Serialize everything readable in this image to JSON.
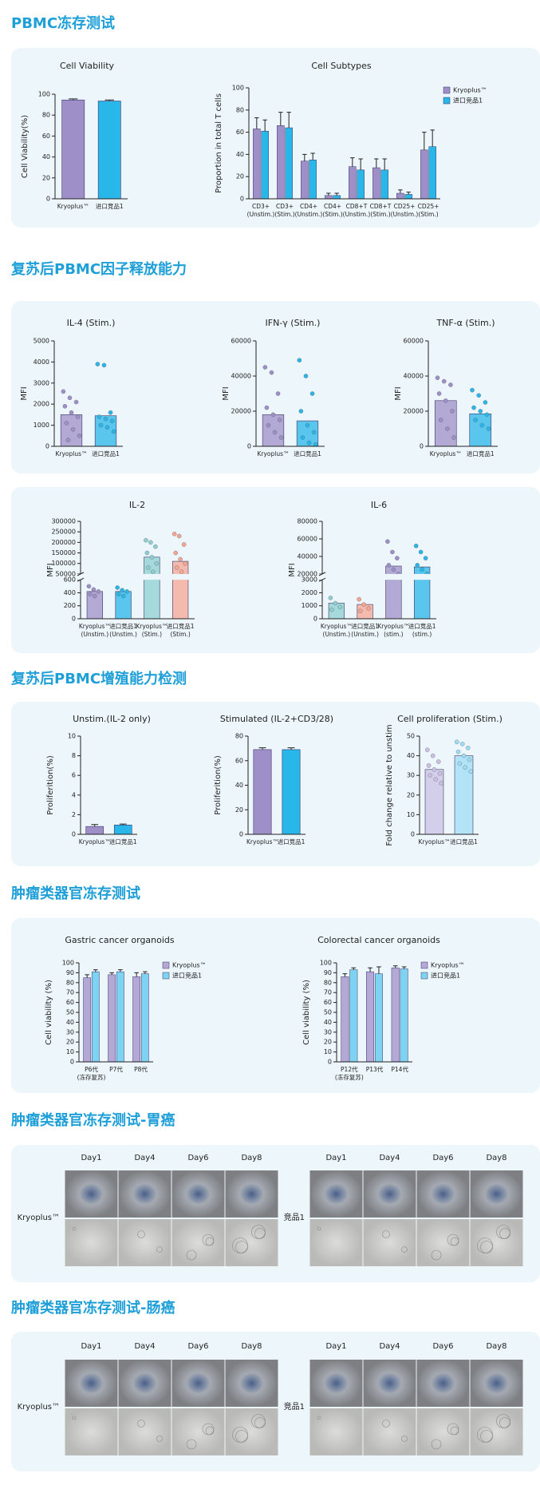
{
  "sections": [
    {
      "title": "PBMC冻存测试",
      "charts": [
        {
          "type": "bar",
          "title": "Cell Viability",
          "ylabel": "Cell Viability(%)",
          "categories": [
            [
              "Kryoplus™"
            ],
            [
              "进口竞品1"
            ]
          ],
          "values": [
            94.5,
            93.5
          ],
          "errors": [
            1,
            1
          ],
          "colors": [
            "#9e8fc8",
            "#29b6e8"
          ],
          "ylim": [
            0,
            100
          ],
          "yticks": [
            0,
            20,
            40,
            60,
            80,
            100
          ]
        },
        {
          "type": "grouped-bar",
          "title": "Cell Subtypes",
          "ylabel": "Proportion in total T cells",
          "categories": [
            [
              "CD3+",
              "(Unstim.)"
            ],
            [
              "CD3+",
              "(Stim.)"
            ],
            [
              "CD4+",
              "(Unstim.)"
            ],
            [
              "CD4+",
              "(Stim.)"
            ],
            [
              "CD8+T",
              "(Unstim.)"
            ],
            [
              "CD8+T",
              "(Stim.)"
            ],
            [
              "CD25+",
              "(Unstim.)"
            ],
            [
              "CD25+",
              "(Stim.)"
            ]
          ],
          "series": [
            {
              "name": "Kryoplus™",
              "color": "#9e8fc8",
              "values": [
                63,
                66,
                34,
                3,
                29,
                28,
                5,
                44
              ],
              "errors": [
                10,
                12,
                6,
                2,
                8,
                8,
                3,
                16
              ]
            },
            {
              "name": "进口竞品1",
              "color": "#29b6e8",
              "values": [
                61,
                64,
                35,
                3,
                26,
                26,
                4,
                47
              ],
              "errors": [
                10,
                14,
                6,
                2,
                10,
                10,
                2,
                15
              ]
            }
          ],
          "ylim": [
            0,
            100
          ],
          "yticks": [
            0,
            20,
            40,
            60,
            80,
            100
          ],
          "legend": "top-right"
        }
      ]
    },
    {
      "title": "复苏后PBMC因子释放能力",
      "charts": [
        {
          "type": "bar",
          "title": "IL-4 (Stim.)",
          "ylabel": "MFI",
          "categories": [
            [
              "Kryoplus™"
            ],
            [
              "进口竞品1"
            ]
          ],
          "values": [
            1500,
            1450
          ],
          "colors": [
            "#9e8fc8",
            "#29b6e8"
          ],
          "points": [
            [
              2600,
              2300,
              2100,
              1900,
              1600,
              1400,
              1100,
              800,
              500,
              300
            ],
            [
              3900,
              3850,
              1600,
              1400,
              1300,
              1200,
              1000,
              900,
              700
            ]
          ],
          "ylim": [
            0,
            5000
          ],
          "yticks": [
            0,
            1000,
            2000,
            3000,
            4000,
            5000
          ]
        },
        {
          "type": "bar",
          "title": "IFN-γ (Stim.)",
          "ylabel": "MFI",
          "categories": [
            [
              "Kryoplus™"
            ],
            [
              "进口竞品1"
            ]
          ],
          "values": [
            18000,
            14500
          ],
          "colors": [
            "#9e8fc8",
            "#29b6e8"
          ],
          "points": [
            [
              45000,
              42000,
              30000,
              22000,
              18000,
              15000,
              12000,
              8000,
              5000
            ],
            [
              49000,
              40000,
              30000,
              20000,
              12000,
              8000,
              5000,
              2000,
              1000
            ]
          ],
          "ylim": [
            0,
            60000
          ],
          "yticks": [
            0,
            20000,
            40000,
            60000
          ]
        },
        {
          "type": "bar",
          "title": "TNF-α (Stim.)",
          "ylabel": "MFI",
          "categories": [
            [
              "Kryoplus™"
            ],
            [
              "进口竞品1"
            ]
          ],
          "values": [
            26000,
            18500
          ],
          "colors": [
            "#9e8fc8",
            "#29b6e8"
          ],
          "points": [
            [
              39000,
              37000,
              35000,
              30000,
              26000,
              20000,
              15000,
              10000,
              5000
            ],
            [
              32000,
              29000,
              25000,
              22000,
              20000,
              18000,
              15000,
              12000,
              10000
            ]
          ],
          "ylim": [
            0,
            60000
          ],
          "yticks": [
            0,
            20000,
            40000,
            60000
          ]
        },
        {
          "type": "bar",
          "title": "IL-2",
          "ylabel": "MFI",
          "categories": [
            [
              "Kryoplus™",
              "(Unstim.)"
            ],
            [
              "进口竞品1",
              "(Unstim.)"
            ],
            [
              "Kryoplus™",
              "(Stim.)"
            ],
            [
              "进口竞品1",
              "(Stim.)"
            ]
          ],
          "values": [
            420,
            420,
            130000,
            110000
          ],
          "colors": [
            "#9e8fc8",
            "#29b6e8",
            "#8ccfd0",
            "#f4a593"
          ],
          "points": [
            [
              500,
              450,
              420,
              380,
              350
            ],
            [
              480,
              440,
              420,
              380,
              350
            ],
            [
              210000,
              200000,
              180000,
              150000,
              130000,
              100000,
              80000,
              60000
            ],
            [
              240000,
              230000,
              190000,
              150000,
              120000,
              100000,
              80000,
              60000
            ]
          ],
          "ylim": [
            0,
            300000
          ],
          "axis_break": [
            600,
            50000
          ],
          "yticks": [
            0,
            200,
            400,
            600,
            50000,
            100000,
            150000,
            200000,
            250000,
            300000
          ]
        },
        {
          "type": "bar",
          "title": "IL-6",
          "ylabel": "MFI",
          "categories": [
            [
              "Kryoplus™",
              "(Unstim.)"
            ],
            [
              "进口竞品1",
              "(Unstim.)"
            ],
            [
              "Kryoplus™",
              "(stim.)"
            ],
            [
              "进口竞品1",
              "(stim.)"
            ]
          ],
          "values": [
            1200,
            1100,
            29000,
            28000
          ],
          "colors": [
            "#8ccfd0",
            "#f4a593",
            "#9e8fc8",
            "#29b6e8"
          ],
          "points": [
            [
              1600,
              1200,
              900,
              700
            ],
            [
              1500,
              1100,
              800,
              600
            ],
            [
              57000,
              45000,
              38000,
              30000,
              25000,
              20000
            ],
            [
              52000,
              45000,
              38000,
              30000,
              25000,
              20000
            ]
          ],
          "ylim": [
            0,
            80000
          ],
          "axis_break": [
            3000,
            20000
          ],
          "yticks": [
            0,
            1000,
            2000,
            3000,
            20000,
            40000,
            60000,
            80000
          ]
        }
      ]
    },
    {
      "title": "复苏后PBMC增殖能力检测",
      "charts": [
        {
          "type": "bar",
          "title": "Unstim.(IL-2 only)",
          "ylabel": "Proliferition(%)",
          "categories": [
            [
              "Kryoplus™"
            ],
            [
              "进口竞品1"
            ]
          ],
          "values": [
            0.8,
            0.95
          ],
          "errors": [
            0.2,
            0.1
          ],
          "colors": [
            "#9e8fc8",
            "#29b6e8"
          ],
          "ylim": [
            0,
            10
          ],
          "yticks": [
            0,
            2,
            4,
            6,
            8,
            10
          ]
        },
        {
          "type": "bar",
          "title": "Stimulated (IL-2+CD3/28)",
          "ylabel": "Proliferition(%)",
          "categories": [
            [
              "Kryoplus™"
            ],
            [
              "进口竞品1"
            ]
          ],
          "values": [
            69,
            69
          ],
          "errors": [
            1.5,
            1.5
          ],
          "colors": [
            "#9e8fc8",
            "#29b6e8"
          ],
          "ylim": [
            0,
            80
          ],
          "yticks": [
            0,
            20,
            40,
            60,
            80
          ]
        },
        {
          "type": "bar",
          "title": "Cell proliferation (Stim.)",
          "ylabel": "Fold change relative to unstim",
          "categories": [
            [
              "Kryoplus™"
            ],
            [
              "进口竞品1"
            ]
          ],
          "values": [
            33,
            40
          ],
          "colors": [
            "#c9c0e3",
            "#9ddcf5"
          ],
          "points": [
            [
              43,
              40,
              37,
              35,
              33,
              31,
              30,
              28,
              26
            ],
            [
              47,
              46,
              44,
              42,
              40,
              38,
              36,
              34,
              32
            ]
          ],
          "ylim": [
            0,
            50
          ],
          "yticks": [
            0,
            10,
            20,
            30,
            40,
            50
          ]
        }
      ]
    },
    {
      "title": "肿瘤类器官冻存测试",
      "charts": [
        {
          "type": "grouped-bar",
          "title": "Gastric cancer organoids",
          "ylabel": "Cell viability (%)",
          "categories": [
            [
              "P6代",
              "(冻存复苏)"
            ],
            [
              "P7代"
            ],
            [
              "P8代"
            ]
          ],
          "series": [
            {
              "name": "Kryoplus™",
              "color": "#b3a8d6",
              "values": [
                85,
                88,
                86
              ],
              "errors": [
                3,
                2,
                4
              ]
            },
            {
              "name": "进口竞品1",
              "color": "#7fd3f2",
              "values": [
                91,
                91,
                89
              ],
              "errors": [
                2,
                2,
                2
              ]
            }
          ],
          "ylim": [
            0,
            100
          ],
          "yticks": [
            0,
            10,
            20,
            30,
            40,
            50,
            60,
            70,
            80,
            90,
            100
          ],
          "legend": "top-right"
        },
        {
          "type": "grouped-bar",
          "title": "Colorectal cancer organoids",
          "ylabel": "Cell viability (%)",
          "categories": [
            [
              "P12代",
              "(冻存复苏)"
            ],
            [
              "P13代"
            ],
            [
              "P14代"
            ]
          ],
          "series": [
            {
              "name": "Kryoplus™",
              "color": "#b3a8d6",
              "values": [
                86,
                91,
                95
              ],
              "errors": [
                3,
                4,
                2
              ]
            },
            {
              "name": "进口竞品1",
              "color": "#7fd3f2",
              "values": [
                93,
                89,
                94
              ],
              "errors": [
                2,
                7,
                2
              ]
            }
          ],
          "ylim": [
            0,
            100
          ],
          "yticks": [
            0,
            10,
            20,
            30,
            40,
            50,
            60,
            70,
            80,
            90,
            100
          ],
          "legend": "top-right"
        }
      ]
    },
    {
      "title": "肿瘤类器官冻存测试-胃癌",
      "image_grid": {
        "days": [
          "Day1",
          "Day4",
          "Day6",
          "Day8"
        ],
        "groups": [
          "Kryoplus™",
          "竞品1"
        ]
      }
    },
    {
      "title": "肿瘤类器官冻存测试-肠癌",
      "image_grid": {
        "days": [
          "Day1",
          "Day4",
          "Day6",
          "Day8"
        ],
        "groups": [
          "Kryoplus™",
          "竞品1"
        ]
      }
    }
  ]
}
